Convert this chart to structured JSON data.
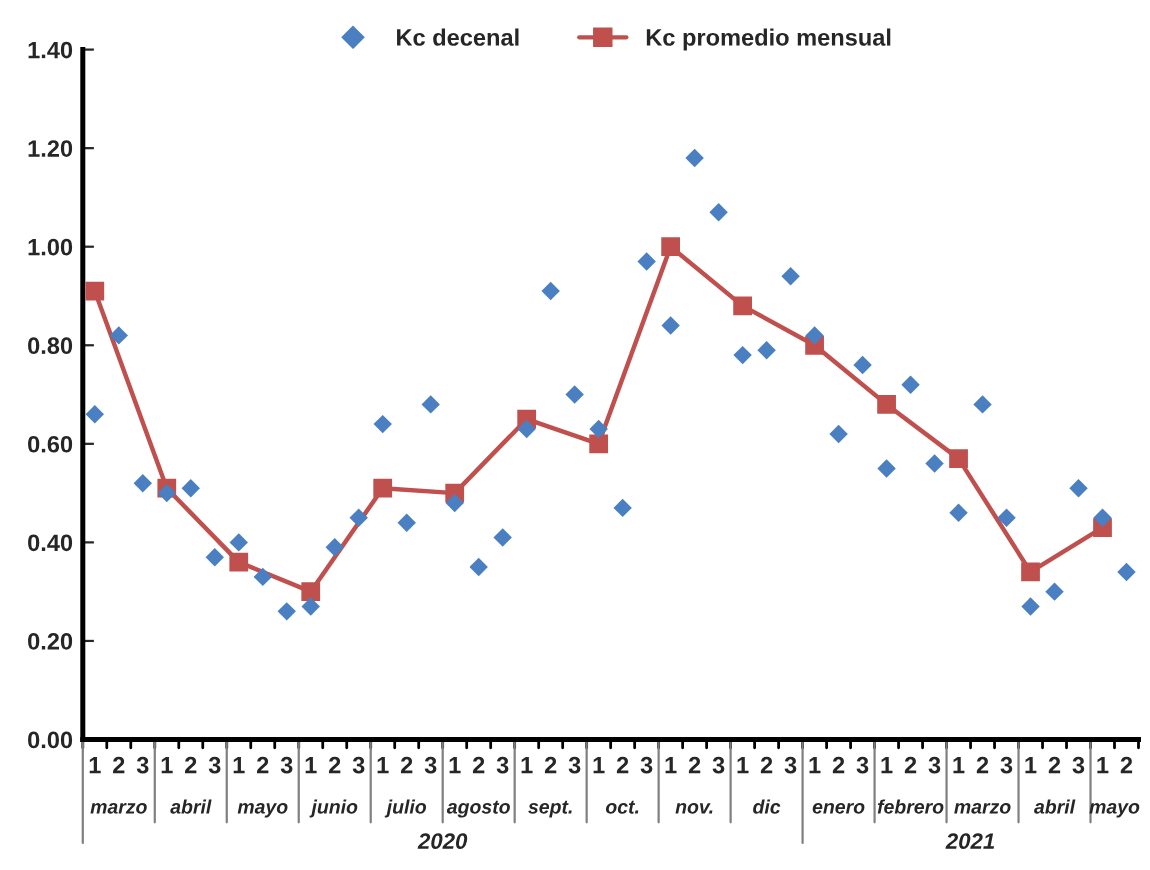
{
  "chart_data": {
    "type": "scatter",
    "categories": [
      "1",
      "2",
      "3",
      "1",
      "2",
      "3",
      "1",
      "2",
      "3",
      "1",
      "2",
      "3",
      "1",
      "2",
      "3",
      "1",
      "2",
      "3",
      "1",
      "2",
      "3",
      "1",
      "2",
      "3",
      "1",
      "2",
      "3",
      "1",
      "2",
      "3",
      "1",
      "2",
      "3",
      "1",
      "2",
      "3",
      "1",
      "2",
      "3",
      "1",
      "2",
      "3",
      "1",
      "2"
    ],
    "series": [
      {
        "name": "Kc decenal",
        "marker": "diamond",
        "color": "#4a7fc1",
        "values": [
          0.66,
          0.82,
          0.52,
          0.5,
          0.51,
          0.37,
          0.4,
          0.33,
          0.26,
          0.27,
          0.39,
          0.45,
          0.64,
          0.44,
          0.68,
          0.48,
          0.35,
          0.41,
          0.63,
          0.91,
          0.7,
          0.63,
          0.47,
          0.97,
          0.84,
          1.18,
          1.07,
          0.78,
          0.79,
          0.94,
          0.82,
          0.62,
          0.76,
          0.55,
          0.72,
          0.56,
          0.46,
          0.68,
          0.45,
          0.27,
          0.3,
          0.51,
          0.45,
          0.34
        ]
      },
      {
        "name": "Kc promedio mensual",
        "type": "line",
        "marker": "square",
        "line_style": "solid",
        "color": "#c0504d",
        "values": [
          0.91,
          null,
          null,
          0.51,
          null,
          null,
          0.36,
          null,
          null,
          0.3,
          null,
          null,
          0.51,
          null,
          null,
          0.5,
          null,
          null,
          0.65,
          null,
          null,
          0.6,
          null,
          null,
          1.0,
          null,
          null,
          0.88,
          null,
          null,
          0.8,
          null,
          null,
          0.68,
          null,
          null,
          0.57,
          null,
          null,
          0.34,
          null,
          null,
          0.43,
          null
        ]
      }
    ],
    "ylim": [
      0,
      1.4
    ],
    "yticks": [
      {
        "value": 0,
        "label": "0.00"
      },
      {
        "value": 0.2,
        "label": "0.20"
      },
      {
        "value": 0.4,
        "label": "0.40"
      },
      {
        "value": 0.6,
        "label": "0.60"
      },
      {
        "value": 0.8,
        "label": "0.80"
      },
      {
        "value": 1.0,
        "label": "1.00"
      },
      {
        "value": 1.2,
        "label": "1.20"
      },
      {
        "value": 1.4,
        "label": "1.40"
      }
    ],
    "grid": false,
    "legend": "top",
    "annotations": [
      "marzo",
      "abril",
      "mayo",
      "junio",
      "julio",
      "agosto",
      "sept.",
      "oct.",
      "nov.",
      "dic",
      "enero",
      "febrero",
      "marzo",
      "abril",
      "mayo",
      "2020",
      "2021"
    ]
  }
}
